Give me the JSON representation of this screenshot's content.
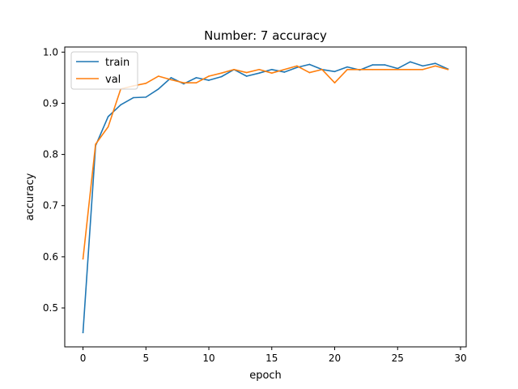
{
  "chart_data": {
    "type": "line",
    "title": "Number: 7 accuracy",
    "xlabel": "epoch",
    "ylabel": "accuracy",
    "xlim": [
      -1.45,
      30.45
    ],
    "ylim": [
      0.424,
      1.01
    ],
    "xticks": [
      0,
      5,
      10,
      15,
      20,
      25,
      30
    ],
    "yticks": [
      0.5,
      0.6,
      0.7,
      0.8,
      0.9,
      1.0
    ],
    "ytick_labels": [
      "0.5",
      "0.6",
      "0.7",
      "0.8",
      "0.9",
      "1.0"
    ],
    "grid": false,
    "legend_position": "top-left",
    "x": [
      0,
      1,
      2,
      3,
      4,
      5,
      6,
      7,
      8,
      9,
      10,
      11,
      12,
      13,
      14,
      15,
      16,
      17,
      18,
      19,
      20,
      21,
      22,
      23,
      24,
      25,
      26,
      27,
      28,
      29
    ],
    "series": [
      {
        "name": "train",
        "color": "#1f77b4",
        "values": [
          0.452,
          0.817,
          0.874,
          0.897,
          0.911,
          0.912,
          0.928,
          0.95,
          0.938,
          0.95,
          0.945,
          0.952,
          0.966,
          0.953,
          0.959,
          0.966,
          0.961,
          0.97,
          0.976,
          0.966,
          0.962,
          0.971,
          0.965,
          0.975,
          0.975,
          0.968,
          0.981,
          0.973,
          0.978,
          0.967
        ]
      },
      {
        "name": "val",
        "color": "#ff7f0e",
        "values": [
          0.596,
          0.82,
          0.854,
          0.928,
          0.934,
          0.939,
          0.953,
          0.946,
          0.94,
          0.94,
          0.953,
          0.959,
          0.966,
          0.96,
          0.966,
          0.959,
          0.966,
          0.973,
          0.96,
          0.966,
          0.94,
          0.966,
          0.966,
          0.966,
          0.966,
          0.966,
          0.966,
          0.966,
          0.973,
          0.966
        ]
      }
    ]
  }
}
